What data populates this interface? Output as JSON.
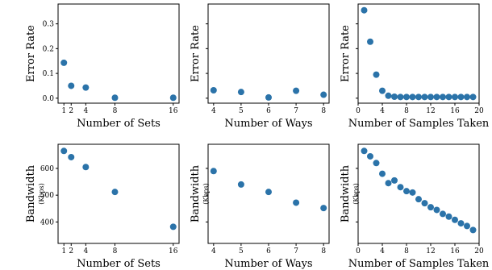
{
  "chart_data": [
    {
      "type": "scatter",
      "xlabel": "Number of Sets",
      "ylabel": "Error Rate",
      "ylabel_sub": "",
      "x": [
        1,
        2,
        4,
        8,
        16
      ],
      "y": [
        0.143,
        0.05,
        0.043,
        0.002,
        0.002
      ],
      "xlim": [
        0.2,
        16.8
      ],
      "ylim": [
        -0.02,
        0.38
      ],
      "xticks": [
        1,
        2,
        4,
        8,
        16
      ],
      "xtick_labels": [
        "1",
        "2",
        "4",
        "8",
        "16"
      ],
      "yticks": [
        0.0,
        0.1,
        0.2,
        0.3
      ],
      "ytick_labels": [
        "0.0",
        "0.1",
        "0.2",
        "0.3"
      ],
      "grid": false,
      "color": "#2b73a9"
    },
    {
      "type": "scatter",
      "xlabel": "Number of Ways",
      "ylabel": "Error Rate",
      "ylabel_sub": "",
      "x": [
        4,
        5,
        6,
        7,
        8
      ],
      "y": [
        0.032,
        0.025,
        0.003,
        0.03,
        0.014
      ],
      "xlim": [
        3.8,
        8.2
      ],
      "ylim": [
        -0.02,
        0.38
      ],
      "xticks": [
        4,
        5,
        6,
        7,
        8
      ],
      "xtick_labels": [
        "4",
        "5",
        "6",
        "7",
        "8"
      ],
      "yticks": [
        0.0,
        0.1,
        0.2,
        0.3
      ],
      "ytick_labels": [],
      "grid": false,
      "color": "#2b73a9"
    },
    {
      "type": "scatter",
      "xlabel": "Number of Samples Taken",
      "ylabel": "Error Rate",
      "ylabel_sub": "",
      "x": [
        1,
        2,
        3,
        4,
        5,
        6,
        7,
        8,
        9,
        10,
        11,
        12,
        13,
        14,
        15,
        16,
        17,
        18,
        19
      ],
      "y": [
        0.355,
        0.228,
        0.095,
        0.03,
        0.01,
        0.006,
        0.005,
        0.005,
        0.005,
        0.005,
        0.005,
        0.005,
        0.005,
        0.005,
        0.005,
        0.005,
        0.005,
        0.005,
        0.005
      ],
      "xlim": [
        0,
        20
      ],
      "ylim": [
        -0.02,
        0.38
      ],
      "xticks": [
        0,
        4,
        8,
        12,
        16,
        20
      ],
      "xtick_labels": [
        "0",
        "4",
        "8",
        "12",
        "16",
        "20"
      ],
      "yticks": [
        0.0,
        0.1,
        0.2,
        0.3
      ],
      "ytick_labels": [],
      "grid": false,
      "color": "#2b73a9"
    },
    {
      "type": "scatter",
      "xlabel": "Number of Sets",
      "ylabel": "Bandwidth",
      "ylabel_sub": "(Kbps)",
      "x": [
        1,
        2,
        4,
        8,
        16
      ],
      "y": [
        665,
        642,
        605,
        512,
        382
      ],
      "xlim": [
        0.2,
        16.8
      ],
      "ylim": [
        320,
        690
      ],
      "xticks": [
        1,
        2,
        4,
        8,
        16
      ],
      "xtick_labels": [
        "1",
        "2",
        "4",
        "8",
        "16"
      ],
      "yticks": [
        400,
        500,
        600
      ],
      "ytick_labels": [
        "400",
        "500",
        "600"
      ],
      "grid": false,
      "color": "#2b73a9"
    },
    {
      "type": "scatter",
      "xlabel": "Number of Ways",
      "ylabel": "Bandwidth",
      "ylabel_sub": "(Kbps)",
      "x": [
        4,
        5,
        6,
        7,
        8
      ],
      "y": [
        590,
        540,
        512,
        472,
        452
      ],
      "xlim": [
        3.8,
        8.2
      ],
      "ylim": [
        320,
        690
      ],
      "xticks": [
        4,
        5,
        6,
        7,
        8
      ],
      "xtick_labels": [
        "4",
        "5",
        "6",
        "7",
        "8"
      ],
      "yticks": [
        400,
        500,
        600
      ],
      "ytick_labels": [],
      "grid": false,
      "color": "#2b73a9"
    },
    {
      "type": "scatter",
      "xlabel": "Number of Samples Taken",
      "ylabel": "Bandwidth",
      "ylabel_sub": "(Kbps)",
      "x": [
        1,
        2,
        3,
        4,
        5,
        6,
        7,
        8,
        9,
        10,
        11,
        12,
        13,
        14,
        15,
        16,
        17,
        18,
        19
      ],
      "y": [
        665,
        645,
        620,
        580,
        545,
        555,
        530,
        515,
        510,
        485,
        470,
        455,
        445,
        430,
        420,
        408,
        395,
        385,
        370
      ],
      "xlim": [
        0,
        20
      ],
      "ylim": [
        320,
        690
      ],
      "xticks": [
        0,
        4,
        8,
        12,
        16,
        20
      ],
      "xtick_labels": [
        "0",
        "4",
        "8",
        "12",
        "16",
        "20"
      ],
      "yticks": [
        400,
        500,
        600
      ],
      "ytick_labels": [],
      "grid": false,
      "color": "#2b73a9"
    }
  ]
}
